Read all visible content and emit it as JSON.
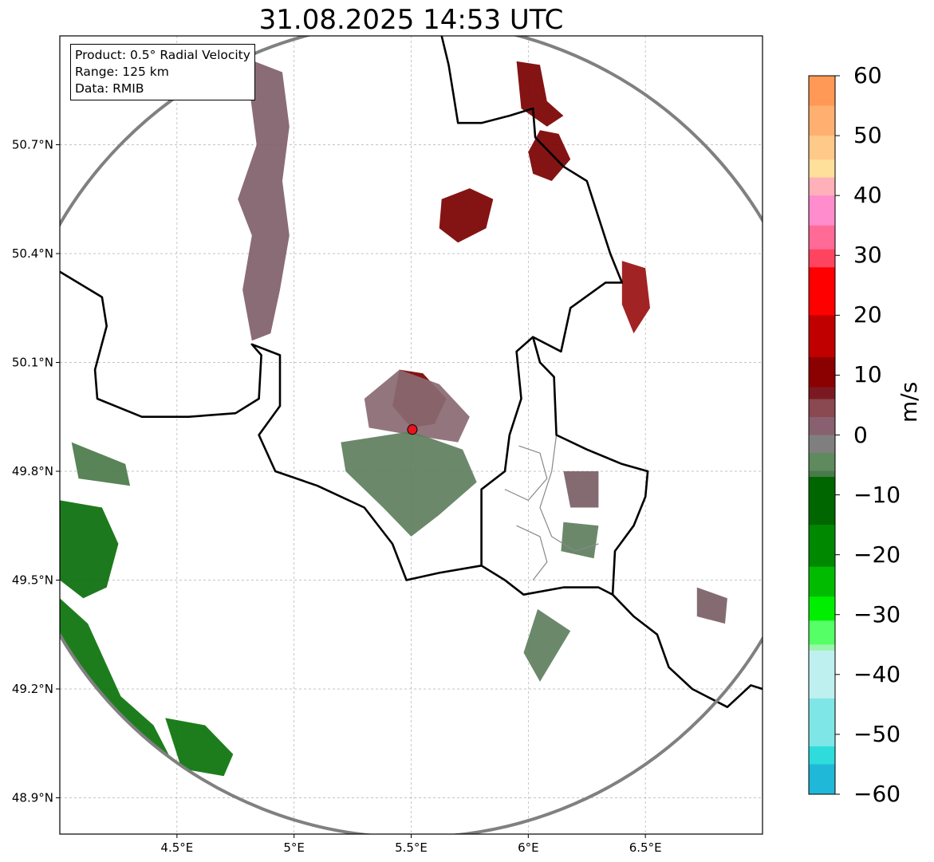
{
  "title": "31.08.2025 14:53 UTC",
  "info_box": [
    "Product: 0.5° Radial Velocity",
    "Range: 125 km",
    "Data: RMIB"
  ],
  "map": {
    "extent": {
      "lon": [
        4.0,
        7.0
      ],
      "lat": [
        48.8,
        51.0
      ]
    },
    "x_ticks": [
      {
        "value": 4.5,
        "label": "4.5°E"
      },
      {
        "value": 5.0,
        "label": "5°E"
      },
      {
        "value": 5.5,
        "label": "5.5°E"
      },
      {
        "value": 6.0,
        "label": "6°E"
      },
      {
        "value": 6.5,
        "label": "6.5°E"
      }
    ],
    "y_ticks": [
      {
        "value": 50.7,
        "label": "50.7°N"
      },
      {
        "value": 50.4,
        "label": "50.4°N"
      },
      {
        "value": 50.1,
        "label": "50.1°N"
      },
      {
        "value": 49.8,
        "label": "49.8°N"
      },
      {
        "value": 49.5,
        "label": "49.5°N"
      },
      {
        "value": 49.2,
        "label": "49.2°N"
      },
      {
        "value": 48.9,
        "label": "48.9°N"
      }
    ],
    "grid": true,
    "radar_site": {
      "lon": 5.505,
      "lat": 49.915
    },
    "range_km": 125,
    "colors": {
      "range_ring": "#808080",
      "border": "#000000",
      "region_border": "#888888",
      "site_marker": "#e8141c"
    }
  },
  "colorbar": {
    "label": "m/s",
    "min": -60,
    "max": 60,
    "ticks": [
      60,
      50,
      40,
      30,
      20,
      10,
      0,
      -10,
      -20,
      -30,
      -40,
      -50,
      -60
    ],
    "tick_labels": [
      "60",
      "50",
      "40",
      "30",
      "20",
      "10",
      "0",
      "−10",
      "−20",
      "−30",
      "−40",
      "−50",
      "−60"
    ],
    "stops": [
      {
        "v": 60,
        "c": "#ff9955"
      },
      {
        "v": 55,
        "c": "#ffb070"
      },
      {
        "v": 50,
        "c": "#ffc98a"
      },
      {
        "v": 46,
        "c": "#ffe09a"
      },
      {
        "v": 43,
        "c": "#ffb0b8"
      },
      {
        "v": 40,
        "c": "#ff8ccc"
      },
      {
        "v": 35,
        "c": "#ff6b96"
      },
      {
        "v": 31,
        "c": "#ff4460"
      },
      {
        "v": 28,
        "c": "#ff0000"
      },
      {
        "v": 20,
        "c": "#c00000"
      },
      {
        "v": 13,
        "c": "#8b0000"
      },
      {
        "v": 8,
        "c": "#7a1a20"
      },
      {
        "v": 6,
        "c": "#8a4850"
      },
      {
        "v": 3,
        "c": "#886070"
      },
      {
        "v": 0,
        "c": "#7f7f7f"
      },
      {
        "v": -3,
        "c": "#5e8a5e"
      },
      {
        "v": -6,
        "c": "#4a7a4a"
      },
      {
        "v": -7,
        "c": "#006600"
      },
      {
        "v": -15,
        "c": "#008800"
      },
      {
        "v": -22,
        "c": "#00bb00"
      },
      {
        "v": -27,
        "c": "#00ee00"
      },
      {
        "v": -31,
        "c": "#55ff66"
      },
      {
        "v": -35,
        "c": "#99f5aa"
      },
      {
        "v": -36,
        "c": "#bff0f0"
      },
      {
        "v": -44,
        "c": "#7ee6e6"
      },
      {
        "v": -52,
        "c": "#2edcdc"
      },
      {
        "v": -55,
        "c": "#20b8d8"
      },
      {
        "v": -60,
        "c": "#1f78c0"
      }
    ]
  },
  "echo_areas": [
    {
      "id": "echoes-northwest-band",
      "points": [
        [
          4.83,
          50.93
        ],
        [
          4.95,
          50.9
        ],
        [
          4.98,
          50.75
        ],
        [
          4.95,
          50.6
        ],
        [
          4.98,
          50.45
        ],
        [
          4.94,
          50.3
        ],
        [
          4.9,
          50.18
        ],
        [
          4.82,
          50.16
        ],
        [
          4.78,
          50.3
        ],
        [
          4.82,
          50.45
        ],
        [
          4.76,
          50.55
        ],
        [
          4.84,
          50.7
        ],
        [
          4.81,
          50.85
        ]
      ],
      "color": "#80606a"
    },
    {
      "id": "echoes-north-red-1",
      "points": [
        [
          5.95,
          50.93
        ],
        [
          6.05,
          50.92
        ],
        [
          6.08,
          50.82
        ],
        [
          6.15,
          50.78
        ],
        [
          6.08,
          50.75
        ],
        [
          5.97,
          50.8
        ]
      ],
      "color": "#7a0000"
    },
    {
      "id": "echoes-north-red-2",
      "points": [
        [
          6.0,
          50.68
        ],
        [
          6.05,
          50.74
        ],
        [
          6.13,
          50.73
        ],
        [
          6.18,
          50.66
        ],
        [
          6.1,
          50.6
        ],
        [
          6.02,
          50.62
        ]
      ],
      "color": "#7a0000"
    },
    {
      "id": "echoes-north-red-3",
      "points": [
        [
          5.63,
          50.55
        ],
        [
          5.75,
          50.58
        ],
        [
          5.85,
          50.55
        ],
        [
          5.82,
          50.47
        ],
        [
          5.7,
          50.43
        ],
        [
          5.62,
          50.47
        ]
      ],
      "color": "#7a0000"
    },
    {
      "id": "echoes-northeast-red",
      "points": [
        [
          6.4,
          50.38
        ],
        [
          6.5,
          50.36
        ],
        [
          6.52,
          50.25
        ],
        [
          6.45,
          50.18
        ],
        [
          6.4,
          50.26
        ]
      ],
      "color": "#9a1010"
    },
    {
      "id": "echoes-center-red",
      "points": [
        [
          5.45,
          50.08
        ],
        [
          5.55,
          50.07
        ],
        [
          5.65,
          50.0
        ],
        [
          5.6,
          49.93
        ],
        [
          5.5,
          49.92
        ],
        [
          5.42,
          49.98
        ]
      ],
      "color": "#7a0000"
    },
    {
      "id": "echoes-center-mauve",
      "points": [
        [
          5.3,
          50.0
        ],
        [
          5.45,
          50.08
        ],
        [
          5.62,
          50.04
        ],
        [
          5.75,
          49.95
        ],
        [
          5.7,
          49.88
        ],
        [
          5.5,
          49.9
        ],
        [
          5.32,
          49.92
        ]
      ],
      "color": "#8a6a72"
    },
    {
      "id": "echoes-center-green",
      "points": [
        [
          5.2,
          49.88
        ],
        [
          5.5,
          49.91
        ],
        [
          5.72,
          49.86
        ],
        [
          5.78,
          49.77
        ],
        [
          5.62,
          49.68
        ],
        [
          5.5,
          49.62
        ],
        [
          5.38,
          49.7
        ],
        [
          5.22,
          49.8
        ]
      ],
      "color": "#5e7e5e"
    },
    {
      "id": "echoes-southwest-green-1",
      "points": [
        [
          4.0,
          49.72
        ],
        [
          4.18,
          49.7
        ],
        [
          4.25,
          49.6
        ],
        [
          4.2,
          49.48
        ],
        [
          4.1,
          49.45
        ],
        [
          4.0,
          49.5
        ]
      ],
      "color": "#0a6e0a"
    },
    {
      "id": "echoes-southwest-green-2",
      "points": [
        [
          4.0,
          49.45
        ],
        [
          4.12,
          49.38
        ],
        [
          4.26,
          49.18
        ],
        [
          4.4,
          49.1
        ],
        [
          4.48,
          49.0
        ],
        [
          4.35,
          48.98
        ],
        [
          4.22,
          49.05
        ],
        [
          4.1,
          49.2
        ],
        [
          4.0,
          49.3
        ]
      ],
      "color": "#0a720a"
    },
    {
      "id": "echoes-southwest-green-3",
      "points": [
        [
          4.45,
          49.12
        ],
        [
          4.62,
          49.1
        ],
        [
          4.74,
          49.02
        ],
        [
          4.7,
          48.96
        ],
        [
          4.52,
          48.98
        ]
      ],
      "color": "#0a720a"
    },
    {
      "id": "echoes-west-green",
      "points": [
        [
          4.05,
          49.88
        ],
        [
          4.28,
          49.82
        ],
        [
          4.3,
          49.76
        ],
        [
          4.08,
          49.78
        ]
      ],
      "color": "#4a7a4a"
    },
    {
      "id": "echoes-luxembourg-1",
      "points": [
        [
          6.15,
          49.8
        ],
        [
          6.3,
          49.8
        ],
        [
          6.3,
          49.7
        ],
        [
          6.18,
          49.7
        ]
      ],
      "color": "#7a5e66"
    },
    {
      "id": "echoes-luxembourg-2",
      "points": [
        [
          6.15,
          49.66
        ],
        [
          6.3,
          49.65
        ],
        [
          6.28,
          49.56
        ],
        [
          6.14,
          49.58
        ]
      ],
      "color": "#5e7e5e"
    },
    {
      "id": "echoes-southeast-green",
      "points": [
        [
          6.04,
          49.42
        ],
        [
          6.18,
          49.36
        ],
        [
          6.05,
          49.22
        ],
        [
          5.98,
          49.3
        ]
      ],
      "color": "#5e7e5e"
    },
    {
      "id": "echoes-east-mauve",
      "points": [
        [
          6.72,
          49.48
        ],
        [
          6.85,
          49.45
        ],
        [
          6.84,
          49.38
        ],
        [
          6.72,
          49.4
        ]
      ],
      "color": "#7a5e66"
    }
  ],
  "borders": {
    "national": [
      [
        [
          4.0,
          50.35
        ],
        [
          4.18,
          50.28
        ],
        [
          4.2,
          50.2
        ],
        [
          4.15,
          50.08
        ],
        [
          4.16,
          50.0
        ],
        [
          4.35,
          49.95
        ],
        [
          4.55,
          49.95
        ],
        [
          4.75,
          49.96
        ],
        [
          4.85,
          50.0
        ],
        [
          4.86,
          50.12
        ],
        [
          4.82,
          50.15
        ],
        [
          4.94,
          50.12
        ],
        [
          4.94,
          49.98
        ],
        [
          4.85,
          49.9
        ],
        [
          4.92,
          49.8
        ],
        [
          5.1,
          49.76
        ],
        [
          5.3,
          49.7
        ],
        [
          5.42,
          49.6
        ],
        [
          5.48,
          49.5
        ],
        [
          5.62,
          49.52
        ],
        [
          5.8,
          49.54
        ],
        [
          5.9,
          49.5
        ],
        [
          5.98,
          49.46
        ],
        [
          6.15,
          49.48
        ],
        [
          6.3,
          49.48
        ],
        [
          6.36,
          49.46
        ],
        [
          6.45,
          49.4
        ],
        [
          6.55,
          49.35
        ],
        [
          6.6,
          49.26
        ],
        [
          6.7,
          49.2
        ],
        [
          6.85,
          49.15
        ],
        [
          6.95,
          49.21
        ],
        [
          7.0,
          49.2
        ]
      ],
      [
        [
          6.02,
          50.17
        ],
        [
          6.05,
          50.1
        ],
        [
          6.11,
          50.06
        ],
        [
          6.12,
          49.9
        ],
        [
          6.25,
          49.86
        ],
        [
          6.4,
          49.82
        ],
        [
          6.51,
          49.8
        ],
        [
          6.5,
          49.73
        ],
        [
          6.45,
          49.65
        ],
        [
          6.37,
          49.58
        ],
        [
          6.36,
          49.46
        ]
      ],
      [
        [
          5.8,
          49.54
        ],
        [
          5.8,
          49.75
        ],
        [
          5.9,
          49.8
        ],
        [
          5.92,
          49.9
        ],
        [
          5.97,
          50.0
        ],
        [
          5.95,
          50.13
        ],
        [
          6.02,
          50.17
        ],
        [
          6.14,
          50.13
        ],
        [
          6.18,
          50.25
        ],
        [
          6.33,
          50.32
        ],
        [
          6.4,
          50.32
        ],
        [
          6.35,
          50.4
        ],
        [
          6.3,
          50.5
        ],
        [
          6.25,
          50.6
        ],
        [
          6.15,
          50.64
        ],
        [
          6.03,
          50.72
        ],
        [
          6.02,
          50.8
        ],
        [
          5.92,
          50.78
        ],
        [
          5.8,
          50.76
        ],
        [
          5.7,
          50.76
        ],
        [
          5.68,
          50.84
        ],
        [
          5.66,
          50.92
        ],
        [
          5.63,
          51.0
        ]
      ]
    ],
    "regional": [
      [
        [
          5.96,
          49.87
        ],
        [
          6.05,
          49.85
        ],
        [
          6.08,
          49.78
        ],
        [
          6.0,
          49.72
        ],
        [
          5.9,
          49.75
        ]
      ],
      [
        [
          6.12,
          49.9
        ],
        [
          6.1,
          49.8
        ],
        [
          6.05,
          49.7
        ],
        [
          6.1,
          49.62
        ],
        [
          6.2,
          49.58
        ],
        [
          6.3,
          49.6
        ]
      ],
      [
        [
          5.95,
          49.65
        ],
        [
          6.05,
          49.62
        ],
        [
          6.08,
          49.55
        ],
        [
          6.02,
          49.5
        ]
      ]
    ]
  }
}
